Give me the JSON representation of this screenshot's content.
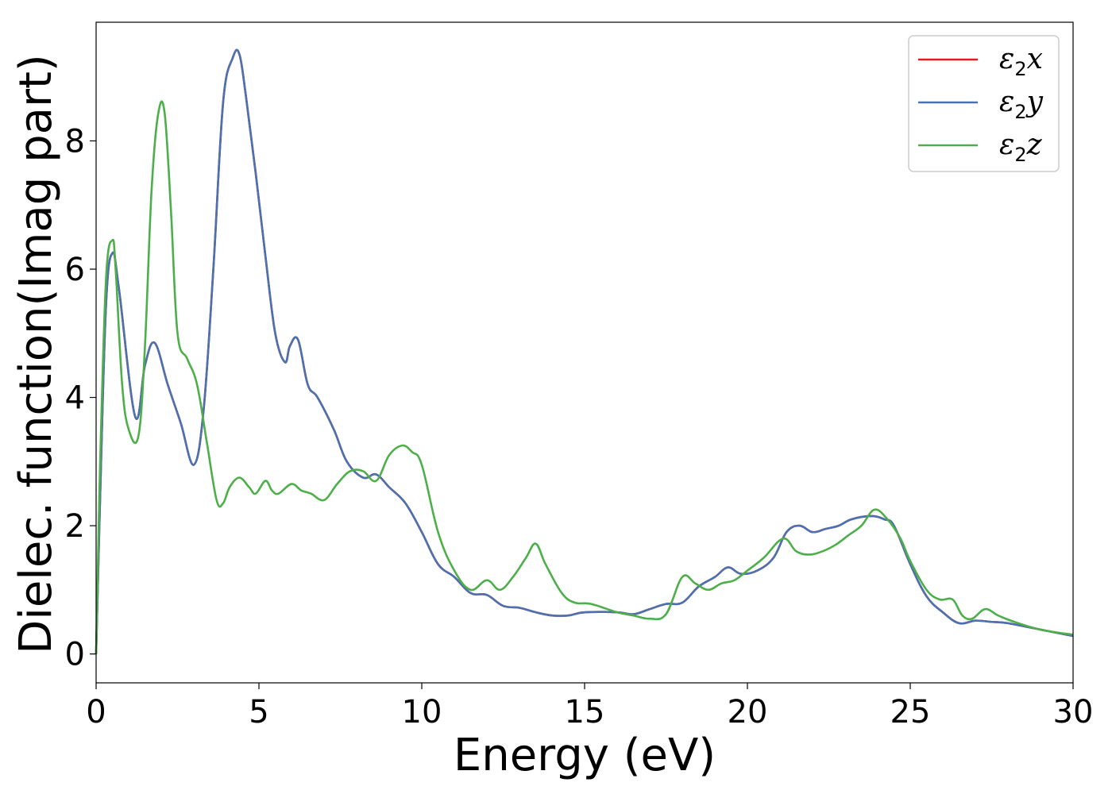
{
  "chart_data": {
    "type": "line",
    "title": "",
    "xlabel": "Energy (eV)",
    "ylabel": "Dielec. function(Imag part)",
    "xlim": [
      0,
      30
    ],
    "ylim": [
      -0.45,
      9.85
    ],
    "xticks": [
      0,
      5,
      10,
      15,
      20,
      25,
      30
    ],
    "yticks": [
      0,
      2,
      4,
      6,
      8
    ],
    "grid": false,
    "legend_position": "top-right",
    "series": [
      {
        "name": "ε2x",
        "label_base": "ε",
        "label_sub": "2",
        "label_tail": "x",
        "color": "#e41a1c",
        "x": [
          0,
          0.1,
          0.3,
          0.5,
          0.7,
          1.2,
          1.5,
          1.8,
          2.2,
          2.6,
          3.0,
          3.3,
          3.6,
          3.9,
          4.2,
          4.4,
          4.6,
          4.9,
          5.2,
          5.5,
          5.8,
          5.95,
          6.2,
          6.5,
          6.8,
          7.3,
          7.7,
          8.2,
          8.6,
          9.0,
          9.5,
          10.0,
          10.5,
          11.0,
          11.5,
          12.0,
          12.5,
          13.0,
          13.5,
          14.0,
          14.5,
          15.0,
          16.0,
          16.5,
          17.0,
          17.5,
          18.0,
          18.5,
          19.0,
          19.4,
          19.8,
          20.3,
          20.8,
          21.2,
          21.6,
          22.0,
          22.4,
          22.8,
          23.2,
          23.8,
          24.2,
          24.5,
          25.0,
          25.5,
          26.0,
          26.5,
          27.0,
          27.5,
          28.0,
          29.0,
          30.0
        ],
        "values": [
          0,
          2.0,
          5.4,
          6.25,
          5.7,
          3.7,
          4.5,
          4.85,
          4.2,
          3.6,
          2.95,
          3.8,
          6.0,
          8.6,
          9.3,
          9.35,
          8.7,
          7.5,
          6.2,
          5.0,
          4.55,
          4.8,
          4.9,
          4.2,
          4.0,
          3.5,
          3.0,
          2.75,
          2.8,
          2.6,
          2.35,
          1.9,
          1.4,
          1.2,
          0.95,
          0.92,
          0.75,
          0.72,
          0.65,
          0.6,
          0.6,
          0.65,
          0.65,
          0.62,
          0.7,
          0.78,
          0.8,
          1.05,
          1.2,
          1.35,
          1.25,
          1.3,
          1.5,
          1.9,
          2.0,
          1.9,
          1.95,
          2.0,
          2.1,
          2.15,
          2.1,
          2.0,
          1.4,
          0.9,
          0.65,
          0.48,
          0.52,
          0.5,
          0.48,
          0.38,
          0.28
        ]
      },
      {
        "name": "ε2y",
        "label_base": "ε",
        "label_sub": "2",
        "label_tail": "y",
        "color": "#4a72b0",
        "x": [
          0,
          0.1,
          0.3,
          0.5,
          0.7,
          1.2,
          1.5,
          1.8,
          2.2,
          2.6,
          3.0,
          3.3,
          3.6,
          3.9,
          4.2,
          4.4,
          4.6,
          4.9,
          5.2,
          5.5,
          5.8,
          5.95,
          6.2,
          6.5,
          6.8,
          7.3,
          7.7,
          8.2,
          8.6,
          9.0,
          9.5,
          10.0,
          10.5,
          11.0,
          11.5,
          12.0,
          12.5,
          13.0,
          13.5,
          14.0,
          14.5,
          15.0,
          16.0,
          16.5,
          17.0,
          17.5,
          18.0,
          18.5,
          19.0,
          19.4,
          19.8,
          20.3,
          20.8,
          21.2,
          21.6,
          22.0,
          22.4,
          22.8,
          23.2,
          23.8,
          24.2,
          24.5,
          25.0,
          25.5,
          26.0,
          26.5,
          27.0,
          27.5,
          28.0,
          29.0,
          30.0
        ],
        "values": [
          0,
          2.0,
          5.4,
          6.25,
          5.7,
          3.7,
          4.5,
          4.85,
          4.2,
          3.6,
          2.95,
          3.8,
          6.0,
          8.6,
          9.3,
          9.35,
          8.7,
          7.5,
          6.2,
          5.0,
          4.55,
          4.8,
          4.9,
          4.2,
          4.0,
          3.5,
          3.0,
          2.75,
          2.8,
          2.6,
          2.35,
          1.9,
          1.4,
          1.2,
          0.95,
          0.92,
          0.75,
          0.72,
          0.65,
          0.6,
          0.6,
          0.65,
          0.65,
          0.62,
          0.7,
          0.78,
          0.8,
          1.05,
          1.2,
          1.35,
          1.25,
          1.3,
          1.5,
          1.9,
          2.0,
          1.9,
          1.95,
          2.0,
          2.1,
          2.15,
          2.1,
          2.0,
          1.4,
          0.9,
          0.65,
          0.48,
          0.52,
          0.5,
          0.48,
          0.38,
          0.28
        ]
      },
      {
        "name": "ε2z",
        "label_base": "ε",
        "label_sub": "2",
        "label_tail": "z",
        "color": "#4daf4a",
        "x": [
          0,
          0.1,
          0.3,
          0.5,
          0.6,
          0.8,
          1.0,
          1.3,
          1.5,
          1.7,
          1.9,
          2.1,
          2.3,
          2.5,
          2.8,
          3.1,
          3.4,
          3.7,
          3.9,
          4.1,
          4.4,
          4.7,
          4.9,
          5.2,
          5.4,
          5.6,
          6.0,
          6.3,
          6.6,
          7.0,
          7.4,
          7.8,
          8.2,
          8.6,
          9.0,
          9.4,
          9.7,
          10.0,
          10.5,
          11.0,
          11.5,
          12.0,
          12.4,
          12.8,
          13.2,
          13.5,
          13.8,
          14.3,
          14.7,
          15.2,
          16.0,
          16.5,
          17.0,
          17.5,
          18.0,
          18.4,
          18.8,
          19.2,
          19.6,
          20.0,
          20.5,
          21.1,
          21.5,
          21.9,
          22.3,
          22.7,
          23.1,
          23.5,
          23.9,
          24.3,
          24.7,
          25.0,
          25.5,
          25.9,
          26.3,
          26.6,
          26.9,
          27.3,
          27.7,
          28.2,
          29.0,
          30.0
        ],
        "values": [
          0,
          2.5,
          5.8,
          6.45,
          6.0,
          4.2,
          3.5,
          3.4,
          4.8,
          7.2,
          8.4,
          8.45,
          6.9,
          5.0,
          4.6,
          4.2,
          3.3,
          2.4,
          2.35,
          2.6,
          2.75,
          2.6,
          2.5,
          2.7,
          2.55,
          2.5,
          2.65,
          2.55,
          2.5,
          2.4,
          2.65,
          2.85,
          2.85,
          2.7,
          3.1,
          3.25,
          3.15,
          2.95,
          1.9,
          1.3,
          1.0,
          1.15,
          1.0,
          1.2,
          1.5,
          1.72,
          1.4,
          0.95,
          0.8,
          0.78,
          0.65,
          0.6,
          0.55,
          0.62,
          1.2,
          1.1,
          1.0,
          1.1,
          1.15,
          1.3,
          1.5,
          1.8,
          1.6,
          1.55,
          1.6,
          1.7,
          1.85,
          2.0,
          2.25,
          2.1,
          1.8,
          1.45,
          1.0,
          0.85,
          0.85,
          0.6,
          0.55,
          0.7,
          0.6,
          0.5,
          0.38,
          0.3
        ]
      }
    ]
  }
}
